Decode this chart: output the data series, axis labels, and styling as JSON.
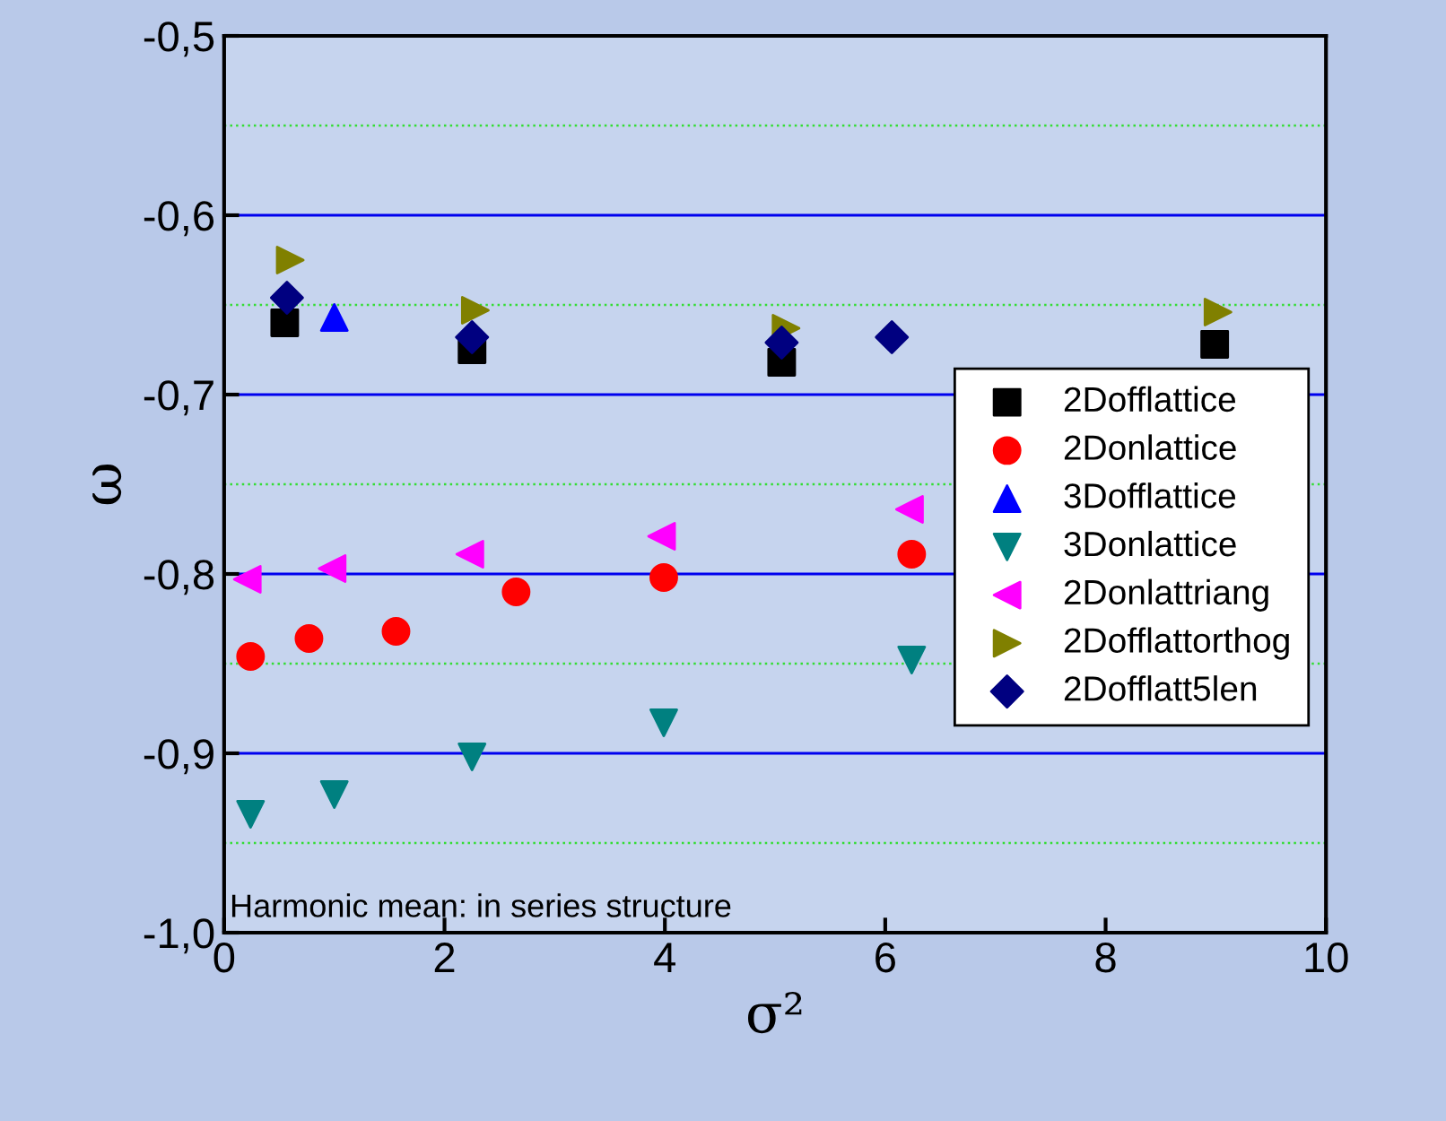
{
  "chart_data": {
    "type": "scatter",
    "xlabel": "σ²",
    "ylabel": "ω",
    "xlim": [
      0,
      10
    ],
    "xticks": [
      0,
      2,
      4,
      6,
      8,
      10
    ],
    "ylim": [
      -1.0,
      -0.5
    ],
    "yticks": [
      {
        "value": -1.0,
        "label": "-1,0"
      },
      {
        "value": -0.9,
        "label": "-0,9"
      },
      {
        "value": -0.8,
        "label": "-0,8"
      },
      {
        "value": -0.7,
        "label": "-0,7"
      },
      {
        "value": -0.6,
        "label": "-0,6"
      },
      {
        "value": -0.5,
        "label": "-0,5"
      }
    ],
    "grid": "y",
    "legend": "right",
    "ref_lines": [
      {
        "axis": "y",
        "value": -0.55,
        "color": "#33dd33",
        "line_style": "dotted"
      },
      {
        "axis": "y",
        "value": -0.65,
        "color": "#33dd33",
        "line_style": "dotted"
      },
      {
        "axis": "y",
        "value": -0.75,
        "color": "#33dd33",
        "line_style": "dotted"
      },
      {
        "axis": "y",
        "value": -0.85,
        "color": "#33dd33",
        "line_style": "dotted"
      },
      {
        "axis": "y",
        "value": -0.95,
        "color": "#33dd33",
        "line_style": "dotted"
      }
    ],
    "annotations": [
      "Harmonic mean: in series structure"
    ],
    "series": [
      {
        "name": "2Dofflattice",
        "color": "#000000",
        "marker": "square",
        "x": [
          0.55,
          2.25,
          5.06,
          8.99
        ],
        "values": [
          -0.66,
          -0.675,
          -0.682,
          -0.672
        ]
      },
      {
        "name": "2Donlattice",
        "color": "#ff0000",
        "marker": "circle",
        "x": [
          0.24,
          0.77,
          1.56,
          2.65,
          3.99,
          6.24
        ],
        "values": [
          -0.846,
          -0.836,
          -0.832,
          -0.81,
          -0.802,
          -0.789
        ]
      },
      {
        "name": "3Dofflattice",
        "color": "#0000ff",
        "marker": "triangle",
        "x": [
          1.0
        ],
        "values": [
          -0.657
        ]
      },
      {
        "name": "3Donlattice",
        "color": "#008080",
        "marker": "triangle-down",
        "x": [
          0.24,
          1.0,
          2.25,
          3.99,
          6.24
        ],
        "values": [
          -0.934,
          -0.923,
          -0.902,
          -0.883,
          -0.848
        ]
      },
      {
        "name": "2Donlattriang",
        "color": "#ff00ff",
        "marker": "triangle-left",
        "x": [
          0.21,
          0.98,
          2.23,
          3.97,
          6.22
        ],
        "values": [
          -0.803,
          -0.797,
          -0.789,
          -0.779,
          -0.764
        ]
      },
      {
        "name": "2Dofflattorthog",
        "color": "#808000",
        "marker": "triangle-right",
        "x": [
          0.6,
          2.28,
          5.1,
          9.02
        ],
        "values": [
          -0.625,
          -0.653,
          -0.663,
          -0.654
        ]
      },
      {
        "name": "2Dofflatt5len",
        "color": "#000080",
        "marker": "diamond",
        "x": [
          0.57,
          2.25,
          5.06,
          6.06
        ],
        "values": [
          -0.646,
          -0.668,
          -0.671,
          -0.668
        ]
      }
    ]
  }
}
